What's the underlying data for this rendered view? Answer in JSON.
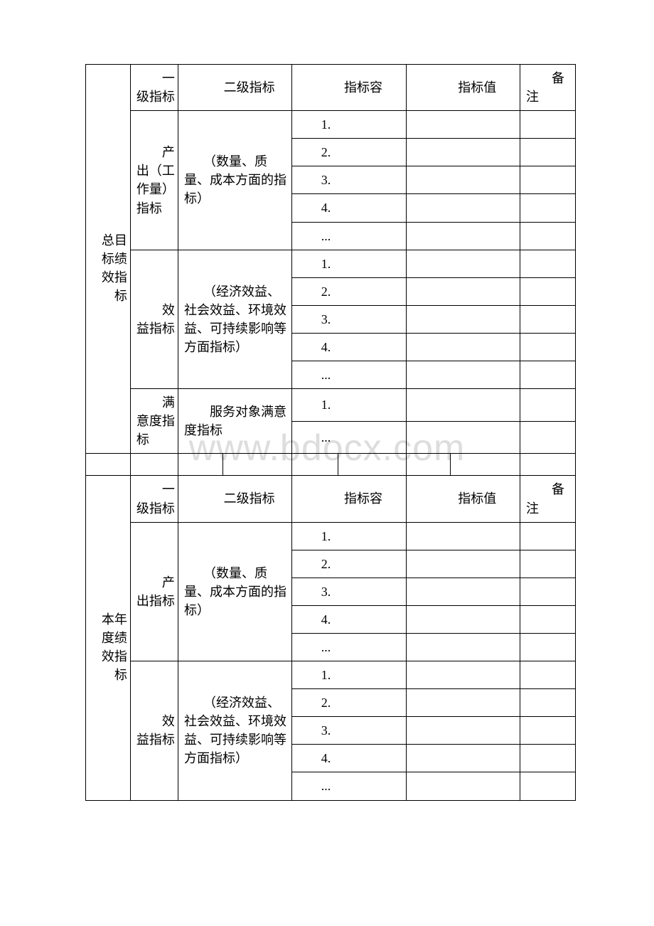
{
  "watermark": "www.bdocx.com",
  "table": {
    "columns": [
      "col-main",
      "col-l1",
      "col-l2a",
      "col-l2b",
      "col-c1",
      "col-c2",
      "col-v1",
      "col-v2",
      "col-note"
    ],
    "border_color": "#000000",
    "background_color": "#ffffff",
    "text_color": "#000000",
    "font_size_pt": 14,
    "sections": [
      {
        "main_label": "　　总目标绩效指标",
        "header": {
          "level1": "　　一级指标",
          "level2": "　　二级指标",
          "content": "　　指标容",
          "value": "　　指标值",
          "note": "　　备注"
        },
        "groups": [
          {
            "level1": "　　产出（工作量）指标",
            "level2": "　　（数量、质量、成本方面的指标）",
            "rows": [
              "1.",
              "2.",
              "3.",
              "4.",
              "..."
            ]
          },
          {
            "level1": "　　效益指标",
            "level2": "　　（经济效益、社会效益、环境效益、可持续影响等方面指标）",
            "rows": [
              "1.",
              "2.",
              "3.",
              "4.",
              "..."
            ]
          },
          {
            "level1": "　　满意度指标",
            "level2": "　　服务对象满意度指标",
            "rows": [
              "1.",
              "..."
            ]
          }
        ]
      },
      {
        "main_label": "　　本年度绩效指标",
        "header": {
          "level1": "　　一级指标",
          "level2": "　　二级指标",
          "content": "　　指标容",
          "value": "　　指标值",
          "note": "　　备注"
        },
        "groups": [
          {
            "level1": "　　产出指标",
            "level2": "　　（数量、质量、成本方面的指标）",
            "rows": [
              "1.",
              "2.",
              "3.",
              "4.",
              "..."
            ]
          },
          {
            "level1": "　　效益指标",
            "level2": "　　（经济效益、社会效益、环境效益、可持续影响等方面指标）",
            "rows": [
              "1.",
              "2.",
              "3.",
              "4.",
              "..."
            ]
          }
        ]
      }
    ]
  }
}
